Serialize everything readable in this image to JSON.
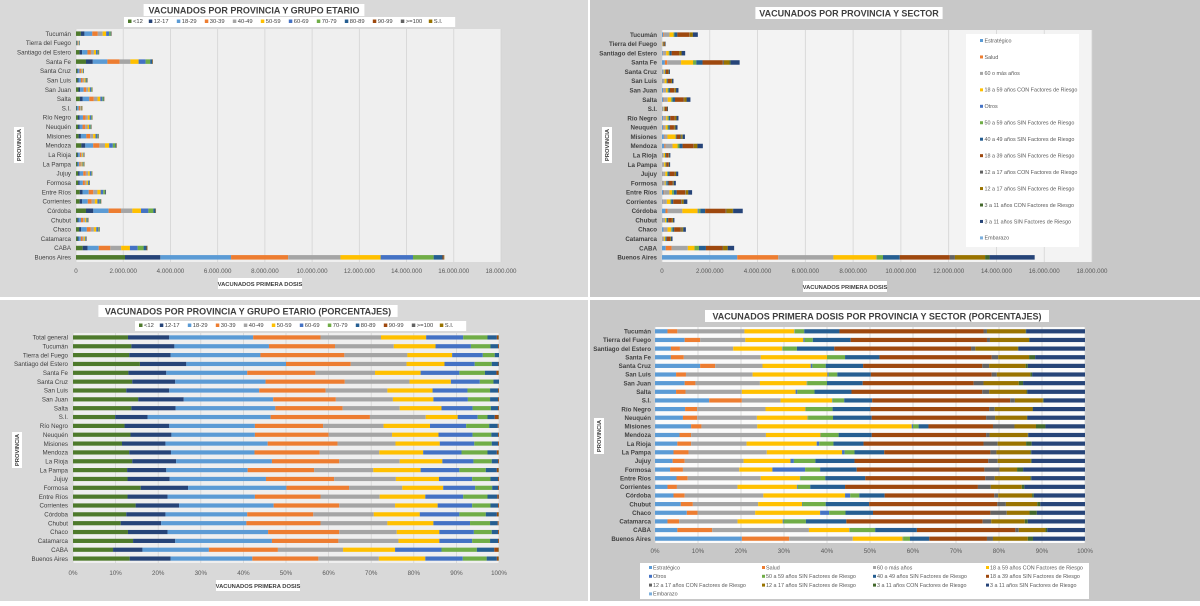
{
  "chart_data": [
    {
      "type": "bar",
      "orientation": "horizontal",
      "stacked": true,
      "title": "VACUNADOS POR PROVINCIA Y GRUPO ETARIO",
      "xlabel": "VACUNADOS PRIMERA  DOSIS",
      "ylabel": "PROVINCIA",
      "xlim": [
        0,
        18000000
      ],
      "xticks": [
        "0",
        "2.000.000",
        "4.000.000",
        "6.000.000",
        "8.000.000",
        "10.000.000",
        "12.000.000",
        "14.000.000",
        "16.000.000",
        "18.000.000"
      ],
      "legend_position": "top",
      "legend": [
        "<12",
        "12-17",
        "18-29",
        "30-39",
        "40-49",
        "50-59",
        "60-69",
        "70-79",
        "80-89",
        "90-99",
        ">=100",
        "S.I."
      ],
      "colors": [
        "#4e7a2c",
        "#264478",
        "#5b9bd5",
        "#ed7d31",
        "#a5a5a5",
        "#ffc000",
        "#4472c4",
        "#70ad47",
        "#255e91",
        "#9e480e",
        "#636363",
        "#997300"
      ],
      "categories": [
        "Tucumán",
        "Tierra del Fuego",
        "Santiago del Estero",
        "Santa Fe",
        "Santa Cruz",
        "San Luis",
        "San Juan",
        "Salta",
        "S.I.",
        "Río Negro",
        "Neuquén",
        "Misiones",
        "Mendoza",
        "La Rioja",
        "La Pampa",
        "Jujuy",
        "Formosa",
        "Entre Ríos",
        "Corrientes",
        "Córdoba",
        "Chubut",
        "Chaco",
        "Catamarca",
        "CABA",
        "Buenos Aires"
      ],
      "totals": [
        1500000,
        150000,
        970000,
        3250000,
        330000,
        480000,
        690000,
        1190000,
        250000,
        690000,
        650000,
        960000,
        1710000,
        350000,
        340000,
        680000,
        580000,
        1260000,
        1060000,
        3380000,
        520000,
        1000000,
        440000,
        3020000,
        15600000
      ],
      "segment_shares": "same age-group percentages as the PORCENTAJES chart"
    },
    {
      "type": "bar",
      "orientation": "horizontal",
      "stacked": true,
      "title": "VACUNADOS POR PROVINCIA Y SECTOR",
      "xlabel": "VACUNADOS PRIMERA  DOSIS",
      "ylabel": "PROVINCIA",
      "xlim": [
        0,
        18000000
      ],
      "xticks": [
        "0",
        "2.000.000",
        "4.000.000",
        "6.000.000",
        "8.000.000",
        "10.000.000",
        "12.000.000",
        "14.000.000",
        "16.000.000",
        "18.000.000"
      ],
      "legend_position": "right",
      "legend": [
        "Estratégico",
        "Salud",
        "60 o más años",
        "18 a 59 años CON Factores de Riesgo",
        "Otros",
        "50 a 59 años SIN Factores de Riesgo",
        "40 a 49 años SIN Factores de Riesgo",
        "18 a 39 años SIN Factores de Riesgo",
        "12 a 17 años CON Factores de Riesgo",
        "12 a 17 años SIN Factores de Riesgo",
        "3 a 11 años CON Factores de Riesgo",
        "3 a 11 años SIN Factores de Riesgo",
        "Embarazo"
      ],
      "colors": [
        "#5b9bd5",
        "#ed7d31",
        "#a5a5a5",
        "#ffc000",
        "#4472c4",
        "#70ad47",
        "#255e91",
        "#9e480e",
        "#636363",
        "#997300",
        "#43682b",
        "#264478",
        "#7cafdd"
      ],
      "categories": [
        "Tucumán",
        "Tierra del Fuego",
        "Santiago del Estero",
        "Santa Fe",
        "Santa Cruz",
        "San Luis",
        "San Juan",
        "Salta",
        "S.I.",
        "Río Negro",
        "Neuquén",
        "Misiones",
        "Mendoza",
        "La Rioja",
        "La Pampa",
        "Jujuy",
        "Formosa",
        "Entre Ríos",
        "Corrientes",
        "Córdoba",
        "Chubut",
        "Chaco",
        "Catamarca",
        "CABA",
        "Buenos Aires"
      ],
      "totals": [
        1500000,
        150000,
        970000,
        3250000,
        330000,
        480000,
        690000,
        1190000,
        250000,
        690000,
        650000,
        960000,
        1710000,
        350000,
        340000,
        680000,
        580000,
        1260000,
        1060000,
        3380000,
        520000,
        1000000,
        440000,
        3020000,
        15600000
      ],
      "segment_shares": "same sector percentages as the PORCENTAJES chart"
    },
    {
      "type": "bar",
      "orientation": "horizontal",
      "stacked": true,
      "percent": true,
      "title": "VACUNADOS POR PROVINCIA Y GRUPO ETARIO (PORCENTAJES)",
      "xlabel": "VACUNADOS PRIMERA  DOSIS",
      "ylabel": "PROVINCIA",
      "xlim": [
        0,
        100
      ],
      "xticks": [
        "0%",
        "10%",
        "20%",
        "30%",
        "40%",
        "50%",
        "60%",
        "70%",
        "80%",
        "90%",
        "100%"
      ],
      "legend_position": "top",
      "legend": [
        "<12",
        "12-17",
        "18-29",
        "30-39",
        "40-49",
        "50-59",
        "60-69",
        "70-79",
        "80-89",
        "90-99",
        ">=100",
        "S.I."
      ],
      "colors": [
        "#4e7a2c",
        "#264478",
        "#5b9bd5",
        "#ed7d31",
        "#a5a5a5",
        "#ffc000",
        "#4472c4",
        "#70ad47",
        "#255e91",
        "#9e480e",
        "#636363",
        "#997300"
      ],
      "categories": [
        "Total general",
        "Tucumán",
        "Tierra del Fuego",
        "Santiago del Estero",
        "Santa Fe",
        "Santa Cruz",
        "San Luis",
        "San Juan",
        "Salta",
        "S.I.",
        "Río Negro",
        "Neuquén",
        "Misiones",
        "Mendoza",
        "La Rioja",
        "La Pampa",
        "Jujuy",
        "Formosa",
        "Entre Ríos",
        "Corrientes",
        "Córdoba",
        "Chubut",
        "Chaco",
        "Catamarca",
        "CABA",
        "Buenos Aires"
      ],
      "values_by_category": [
        [
          12.9,
          9.7,
          19.7,
          15.8,
          14.2,
          10.6,
          8.7,
          5.7,
          2.2,
          0.3,
          0.1,
          0.1
        ],
        [
          13.7,
          10.1,
          22.2,
          15.5,
          13.8,
          9.8,
          8.3,
          4.6,
          1.8,
          0.2,
          0,
          0
        ],
        [
          13.2,
          9.7,
          21.1,
          19.7,
          14.8,
          10.5,
          7.2,
          2.8,
          1.0,
          0,
          0,
          0
        ],
        [
          15.7,
          10.9,
          23.4,
          15.2,
          13.1,
          8.9,
          7.1,
          4.0,
          1.6,
          0.1,
          0,
          0
        ],
        [
          13.0,
          8.9,
          19.0,
          16.0,
          14.0,
          10.7,
          9.1,
          6.0,
          2.7,
          0.4,
          0.1,
          0.1
        ],
        [
          13.9,
          10.1,
          21.2,
          18.6,
          15.2,
          9.7,
          6.8,
          3.2,
          1.3,
          0,
          0,
          0
        ],
        [
          12.5,
          10.1,
          21.1,
          15.6,
          14.5,
          10.6,
          8.2,
          5.3,
          1.9,
          0.2,
          0,
          0
        ],
        [
          15.3,
          10.7,
          21.0,
          14.7,
          13.4,
          9.5,
          8.1,
          5.2,
          1.9,
          0.2,
          0,
          0
        ],
        [
          13.7,
          10.4,
          23.4,
          15.8,
          13.4,
          9.8,
          7.3,
          4.3,
          1.7,
          0.2,
          0,
          0
        ],
        [
          9.9,
          7.6,
          28.9,
          23.3,
          13.1,
          7.5,
          4.7,
          2.3,
          1.7,
          0.8,
          0.1,
          0.1
        ],
        [
          12.1,
          10.5,
          20.1,
          16.0,
          14.2,
          10.9,
          8.5,
          5.4,
          2.0,
          0.2,
          0,
          0
        ],
        [
          13.5,
          9.6,
          19.6,
          17.3,
          14.9,
          10.9,
          8.0,
          4.4,
          1.6,
          0.2,
          0,
          0
        ],
        [
          11.5,
          10.2,
          24.0,
          16.4,
          13.6,
          10.4,
          8.1,
          4.1,
          1.5,
          0.2,
          0,
          0
        ],
        [
          13.2,
          9.8,
          19.6,
          15.3,
          14.0,
          10.3,
          9.0,
          6.1,
          2.2,
          0.3,
          0.1,
          0.1
        ],
        [
          13.9,
          10.3,
          22.5,
          15.8,
          14.2,
          10.0,
          7.3,
          4.3,
          1.5,
          0.2,
          0,
          0
        ],
        [
          12.7,
          9.2,
          19.1,
          15.6,
          13.9,
          11.1,
          9.1,
          6.2,
          2.6,
          0.3,
          0.1,
          0.1
        ],
        [
          12.8,
          9.9,
          22.6,
          16.0,
          14.5,
          10.1,
          7.8,
          4.3,
          1.8,
          0.2,
          0,
          0
        ],
        [
          15.9,
          11.1,
          23.1,
          14.7,
          12.5,
          9.6,
          7.5,
          4.0,
          1.4,
          0.2,
          0,
          0
        ],
        [
          12.8,
          9.4,
          20.5,
          15.4,
          13.9,
          10.7,
          8.9,
          5.7,
          2.3,
          0.3,
          0.1,
          0
        ],
        [
          14.7,
          10.2,
          22.2,
          15.4,
          13.1,
          10.0,
          8.1,
          4.3,
          1.8,
          0.2,
          0,
          0
        ],
        [
          12.5,
          9.2,
          19.2,
          15.5,
          14.2,
          10.8,
          9.3,
          6.2,
          2.6,
          0.3,
          0.1,
          0.1
        ],
        [
          11.2,
          9.5,
          20.0,
          17.4,
          15.7,
          10.8,
          8.6,
          4.7,
          1.8,
          0.2,
          0,
          0
        ],
        [
          12.9,
          9.3,
          23.6,
          16.7,
          13.5,
          10.0,
          8.1,
          4.2,
          1.5,
          0.2,
          0,
          0
        ],
        [
          14.1,
          9.9,
          22.7,
          15.6,
          14.1,
          9.6,
          7.7,
          4.2,
          1.9,
          0.2,
          0,
          0
        ],
        [
          9.4,
          6.9,
          15.6,
          16.2,
          15.3,
          12.2,
          10.9,
          8.3,
          4.1,
          0.9,
          0.1,
          0.1
        ],
        [
          13.3,
          9.6,
          19.2,
          15.5,
          14.2,
          10.9,
          8.8,
          5.6,
          2.4,
          0.3,
          0.1,
          0.1
        ]
      ]
    },
    {
      "type": "bar",
      "orientation": "horizontal",
      "stacked": true,
      "percent": true,
      "title": "VACUNADOS PRIMERA DOSIS POR PROVINCIA Y SECTOR (PORCENTAJES)",
      "xlabel": "",
      "ylabel": "PROVINCIA",
      "xlim": [
        0,
        100
      ],
      "xticks": [
        "0%",
        "10%",
        "20%",
        "30%",
        "40%",
        "50%",
        "60%",
        "70%",
        "80%",
        "90%",
        "100%"
      ],
      "legend_position": "bottom",
      "legend": [
        "Estratégico",
        "Salud",
        "60 o más años",
        "18 a 59 años CON Factores de Riesgo",
        "Otros",
        "50 a 59 años SIN Factores de Riesgo",
        "40 a 49 años SIN Factores de Riesgo",
        "18 a 39 años SIN Factores de Riesgo",
        "12 a 17 años CON Factores de Riesgo",
        "12 a 17 años SIN Factores de Riesgo",
        "3 a 11 años CON Factores de Riesgo",
        "3 a 11 años SIN Factores de Riesgo",
        "Embarazo"
      ],
      "colors": [
        "#5b9bd5",
        "#ed7d31",
        "#a5a5a5",
        "#ffc000",
        "#4472c4",
        "#70ad47",
        "#255e91",
        "#9e480e",
        "#636363",
        "#997300",
        "#43682b",
        "#264478",
        "#7cafdd"
      ],
      "categories": [
        "Tucumán",
        "Tierra del Fuego",
        "Santiago del Estero",
        "Santa Fe",
        "Santa Cruz",
        "San Luis",
        "San Juan",
        "Salta",
        "S.I.",
        "Río Negro",
        "Neuquén",
        "Misiones",
        "Mendoza",
        "La Rioja",
        "La Pampa",
        "Jujuy",
        "Formosa",
        "Entre Ríos",
        "Corrientes",
        "Córdoba",
        "Chubut",
        "Chaco",
        "Catamarca",
        "CABA",
        "Buenos Aires"
      ],
      "values_by_category": [
        [
          2.9,
          2.3,
          15.6,
          11.6,
          0.1,
          2.2,
          8.2,
          33.5,
          0.8,
          9.0,
          0.1,
          13.7,
          0
        ],
        [
          6.9,
          3.6,
          10.5,
          13.5,
          0.3,
          1.9,
          8.8,
          31.7,
          0.7,
          9.1,
          0.1,
          12.9,
          0
        ],
        [
          3.7,
          2.1,
          12.4,
          11.4,
          0.1,
          3.3,
          8.7,
          31.8,
          1.0,
          9.9,
          0.1,
          15.5,
          0
        ],
        [
          3.7,
          3.0,
          17.9,
          15.4,
          0.0,
          4.2,
          8.0,
          26.1,
          1.5,
          7.2,
          1.4,
          11.6,
          0
        ],
        [
          10.5,
          3.5,
          11.0,
          11.2,
          0.4,
          3.1,
          8.7,
          27.7,
          1.6,
          8.5,
          0.5,
          13.3,
          0
        ],
        [
          4.9,
          2.3,
          15.5,
          17.4,
          0.3,
          2.0,
          7.8,
          28.1,
          1.2,
          7.8,
          0.4,
          12.3,
          0
        ],
        [
          6.9,
          2.5,
          15.0,
          10.9,
          0.1,
          4.6,
          8.3,
          25.8,
          2.3,
          8.2,
          1.0,
          14.4,
          0
        ],
        [
          4.9,
          2.2,
          13.1,
          12.5,
          0.4,
          4.0,
          8.6,
          30.4,
          1.6,
          8.7,
          0.2,
          13.4,
          0
        ],
        [
          12.6,
          7.6,
          9.0,
          12.0,
          0.1,
          2.7,
          6.5,
          32.1,
          1.1,
          6.5,
          0.2,
          9.6,
          0
        ],
        [
          7.0,
          2.8,
          15.9,
          9.3,
          0.1,
          6.2,
          8.8,
          27.6,
          1.3,
          8.8,
          0.1,
          12.1,
          0
        ],
        [
          6.5,
          3.3,
          13.9,
          11.8,
          0.1,
          5.8,
          9.0,
          26.6,
          2.1,
          7.4,
          0.1,
          13.4,
          0
        ],
        [
          8.4,
          2.4,
          13.0,
          35.9,
          0.3,
          1.3,
          2.3,
          15.0,
          5.0,
          5.0,
          2.2,
          9.2,
          0
        ],
        [
          5.7,
          2.7,
          17.4,
          12.7,
          0.1,
          4.1,
          7.7,
          26.6,
          0.8,
          8.9,
          0.1,
          13.2,
          0
        ],
        [
          5.2,
          3.2,
          12.9,
          16.3,
          0.6,
          3.3,
          7.0,
          27.9,
          3.3,
          6.6,
          1.3,
          12.4,
          0
        ],
        [
          4.3,
          3.5,
          18.2,
          17.5,
          0.6,
          2.3,
          6.9,
          24.7,
          1.4,
          7.9,
          0.2,
          12.5,
          0
        ],
        [
          4.1,
          2.8,
          13.7,
          10.9,
          0.8,
          5.0,
          9.1,
          31.1,
          2.2,
          7.7,
          0.2,
          12.4,
          0
        ],
        [
          3.5,
          3.0,
          13.1,
          7.7,
          7.6,
          3.5,
          8.5,
          29.7,
          3.5,
          4.1,
          1.4,
          14.4,
          0
        ],
        [
          5.0,
          2.6,
          17.0,
          9.1,
          0.1,
          5.8,
          9.3,
          27.9,
          2.2,
          8.3,
          0.2,
          12.5,
          0
        ],
        [
          2.9,
          2.2,
          14.1,
          13.8,
          0.2,
          2.9,
          8.1,
          30.9,
          3.0,
          7.2,
          0.6,
          14.1,
          0
        ],
        [
          4.3,
          2.6,
          18.3,
          19.0,
          1.2,
          2.1,
          5.9,
          25.5,
          0.9,
          7.9,
          0.4,
          11.9,
          0
        ],
        [
          6.0,
          2.8,
          15.2,
          10.2,
          0.1,
          5.4,
          10.1,
          29.8,
          2.0,
          7.3,
          0.7,
          10.4,
          0
        ],
        [
          7.4,
          2.5,
          13.4,
          15.1,
          2.1,
          3.8,
          6.4,
          27.3,
          3.8,
          5.3,
          1.7,
          11.2,
          0
        ],
        [
          2.9,
          2.7,
          13.6,
          10.5,
          0.2,
          5.2,
          9.4,
          31.7,
          2.0,
          7.8,
          0.7,
          13.3,
          0
        ],
        [
          5.2,
          8.1,
          22.5,
          9.4,
          0.1,
          5.9,
          9.7,
          22.9,
          0.8,
          6.2,
          0.4,
          8.8,
          0
        ],
        [
          20.2,
          11.0,
          14.8,
          11.6,
          0.1,
          1.6,
          4.5,
          13.4,
          1.4,
          8.1,
          1.2,
          12.1,
          0
        ]
      ]
    }
  ]
}
